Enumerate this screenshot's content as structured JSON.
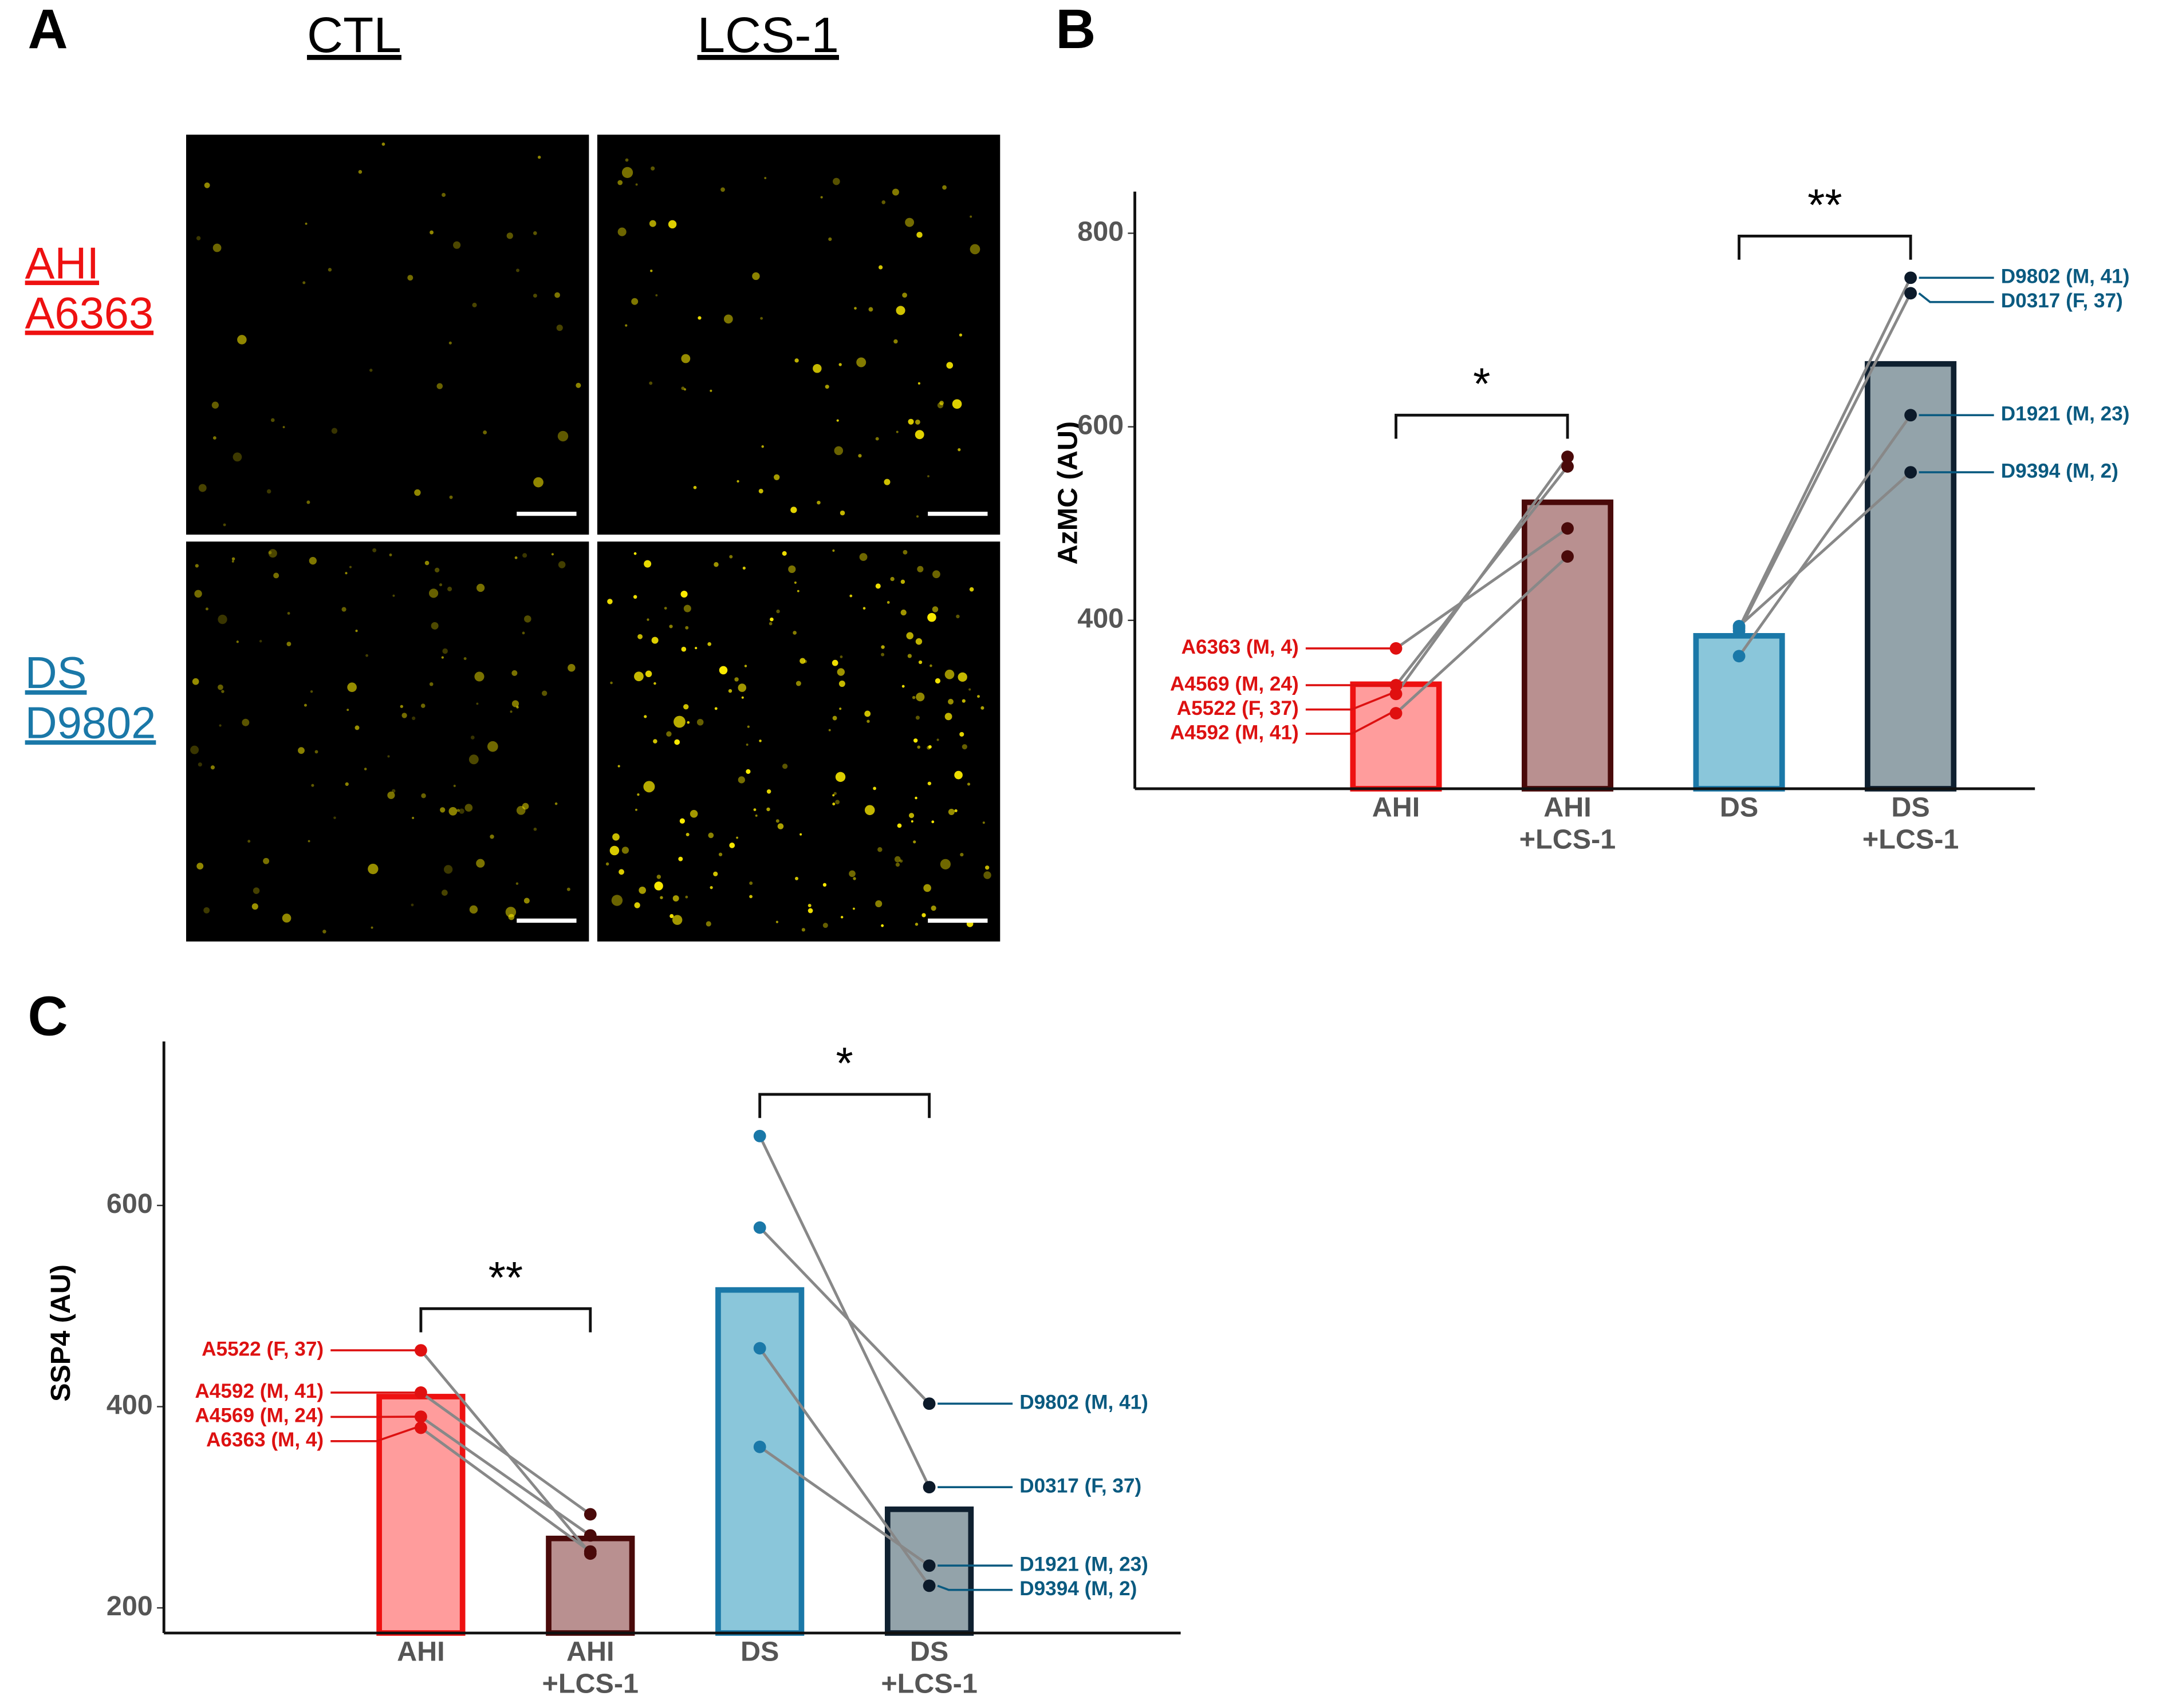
{
  "panel_a": {
    "label": "A",
    "columns": [
      "CTL",
      "LCS-1"
    ],
    "rows": [
      {
        "lines": [
          "AHI",
          "A6363"
        ],
        "color": "#ee1111"
      },
      {
        "lines": [
          "DS",
          "D9802"
        ],
        "color": "#1a78a8"
      }
    ]
  },
  "chart_data": [
    {
      "type": "paired_bar",
      "panel": "B",
      "y_label": "AzMC (AU)",
      "categories": [
        "AHI",
        "AHI\n+LCS-1",
        "DS",
        "DS\n+LCS-1"
      ],
      "values": [
        334,
        522,
        384,
        665
      ],
      "bar_colors": [
        "#ff9c9c",
        "#b99090",
        "#8ac6da",
        "#93a3aa"
      ],
      "edge_colors": [
        "#ee1111",
        "#4a0a0a",
        "#1a78a8",
        "#0f2030"
      ],
      "point_colors": [
        "#e01010",
        "#4a0a0a",
        "#1a78a8",
        "#0c1a2a"
      ],
      "ylim": [
        226,
        843
      ],
      "yticks": [
        400,
        600,
        800
      ],
      "groups": [
        {
          "bracket": "*",
          "subjects": [
            {
              "name": "A6363 (M, 4)",
              "color": "#dd1111",
              "values": [
                371,
                495
              ]
            },
            {
              "name": "A4569 (M, 24)",
              "color": "#dd1111",
              "values": [
                333,
                559
              ]
            },
            {
              "name": "A5522 (F, 37)",
              "color": "#dd1111",
              "values": [
                324,
                569
              ]
            },
            {
              "name": "A4592 (M, 41)",
              "color": "#dd1111",
              "values": [
                304,
                466
              ]
            }
          ]
        },
        {
          "bracket": "**",
          "subjects": [
            {
              "name": "D9802 (M, 41)",
              "color": "#0a5a80",
              "values": [
                392,
                754
              ]
            },
            {
              "name": "D0317 (F, 37)",
              "color": "#0a5a80",
              "values": [
                389,
                738
              ]
            },
            {
              "name": "D1921 (M, 23)",
              "color": "#0a5a80",
              "values": [
                363,
                612
              ]
            },
            {
              "name": "D9394 (M, 2)",
              "color": "#0a5a80",
              "values": [
                394,
                553
              ]
            }
          ]
        }
      ]
    },
    {
      "type": "paired_bar",
      "panel": "C",
      "y_label": "SSP4 (AU)",
      "categories": [
        "AHI",
        "AHI\n+LCS-1",
        "DS",
        "DS\n+LCS-1"
      ],
      "values": [
        410,
        269,
        516,
        298
      ],
      "bar_colors": [
        "#ff9c9c",
        "#b99090",
        "#8ac6da",
        "#93a3aa"
      ],
      "edge_colors": [
        "#ee1111",
        "#4a0a0a",
        "#1a78a8",
        "#0f2030"
      ],
      "point_colors": [
        "#e01010",
        "#4a0a0a",
        "#1a78a8",
        "#0c1a2a"
      ],
      "ylim": [
        175,
        763
      ],
      "yticks": [
        200,
        400,
        600
      ],
      "groups": [
        {
          "bracket": "**",
          "subjects": [
            {
              "name": "A5522 (F, 37)",
              "color": "#dd1111",
              "values": [
                456,
                254
              ]
            },
            {
              "name": "A4592 (M, 41)",
              "color": "#dd1111",
              "values": [
                414,
                293
              ]
            },
            {
              "name": "A4569 (M, 24)",
              "color": "#dd1111",
              "values": [
                390,
                272
              ]
            },
            {
              "name": "A6363 (M, 4)",
              "color": "#dd1111",
              "values": [
                379,
                256
              ]
            }
          ]
        },
        {
          "bracket": "*",
          "subjects": [
            {
              "name": "D9802 (M, 41)",
              "color": "#0a5a80",
              "values": [
                578,
                403
              ]
            },
            {
              "name": "D0317 (F, 37)",
              "color": "#0a5a80",
              "values": [
                669,
                320
              ]
            },
            {
              "name": "D1921 (M, 23)",
              "color": "#0a5a80",
              "values": [
                360,
                242
              ]
            },
            {
              "name": "D9394 (M, 2)",
              "color": "#0a5a80",
              "values": [
                458,
                222
              ]
            }
          ]
        }
      ]
    }
  ]
}
